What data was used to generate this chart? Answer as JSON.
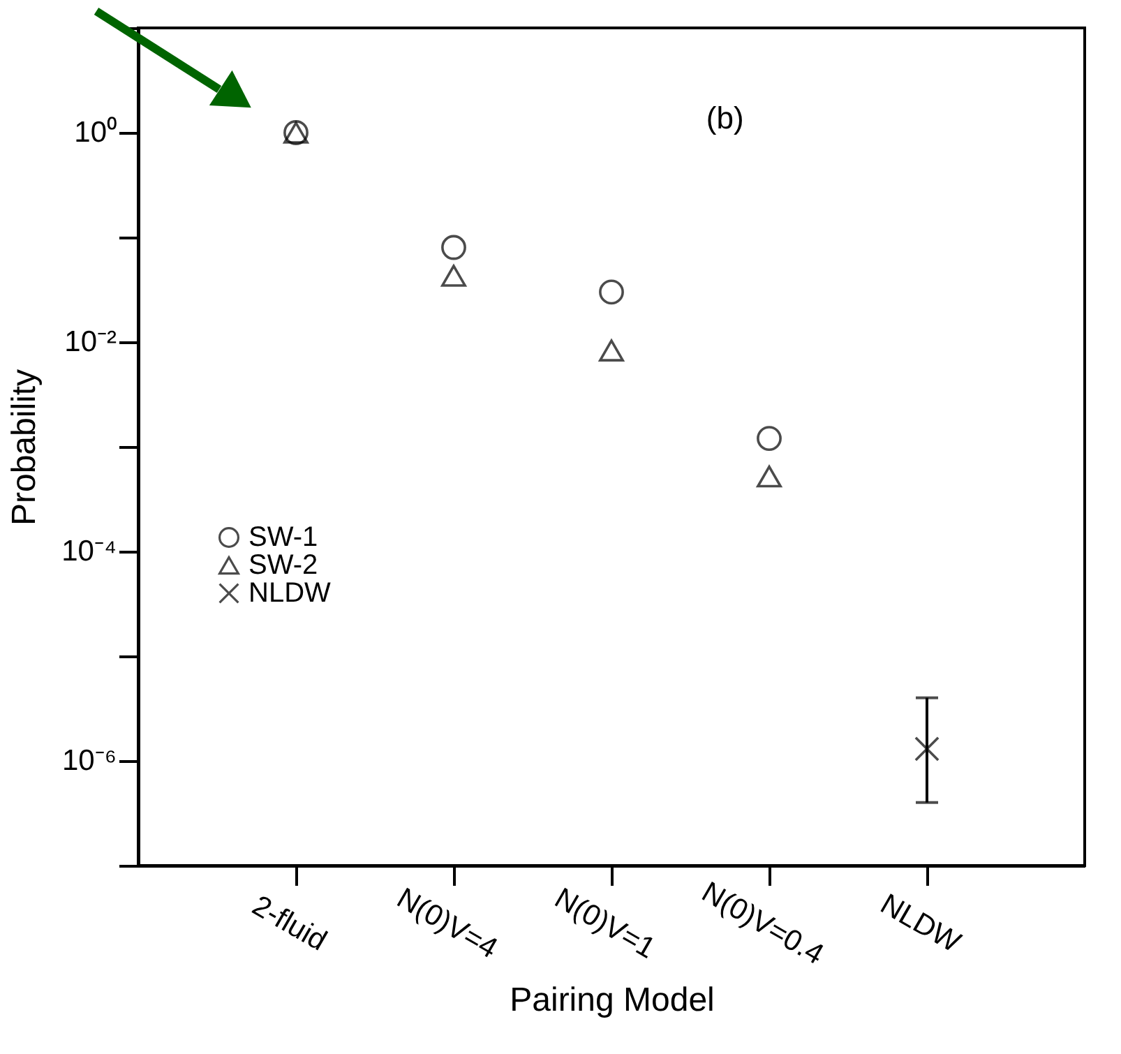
{
  "chart_data": {
    "type": "scatter",
    "xlabel": "Pairing Model",
    "ylabel": "Probability",
    "categories": [
      "2-fluid",
      "N(0)V=4",
      "N(0)V=1",
      "N(0)V=0.4",
      "NLDW"
    ],
    "series": [
      {
        "name": "SW-1",
        "color": "#000000",
        "marker": "circle",
        "values": [
          1,
          0.08,
          0.03,
          0.0012,
          null
        ]
      },
      {
        "name": "SW-2",
        "color": "#000000",
        "marker": "triangle",
        "values": [
          1,
          0.043,
          0.0083,
          0.00052,
          null
        ]
      },
      {
        "name": "NLDW",
        "color": "#000000",
        "marker": "cross",
        "values": [
          null,
          null,
          null,
          null,
          1.3e-06
        ],
        "errors": [
          null,
          null,
          null,
          null,
          [
            4e-07,
            4e-06
          ]
        ]
      }
    ],
    "log": "y",
    "ylim": [
      1e-07,
      10
    ],
    "yticks": [
      {
        "value": 10,
        "label": null
      },
      {
        "value": 1,
        "label": "10⁰"
      },
      {
        "value": 0.1,
        "label": null
      },
      {
        "value": 0.01,
        "label": "10⁻²"
      },
      {
        "value": 0.001,
        "label": null
      },
      {
        "value": 0.0001,
        "label": "10⁻⁴"
      },
      {
        "value": 1e-05,
        "label": null
      },
      {
        "value": 1e-06,
        "label": "10⁻⁶"
      },
      {
        "value": 1e-07,
        "label": null
      }
    ],
    "annotations": [
      "(b)"
    ],
    "legend": "left",
    "grid": false
  }
}
